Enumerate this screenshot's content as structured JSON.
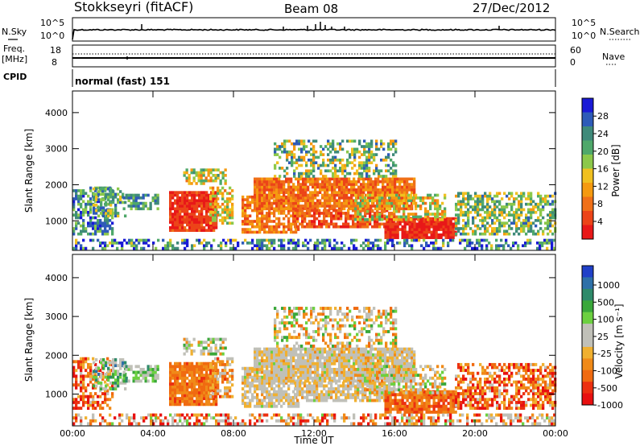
{
  "header": {
    "station": "Stokkseyri (fitACF)",
    "beam": "Beam 08",
    "date": "27/Dec/2012"
  },
  "nsky_panel": {
    "left_label": "N.Sky",
    "right_label": "N.Search",
    "ticks_left": [
      "10^5",
      "10^0"
    ],
    "ticks_right": [
      "10^5",
      "10^0"
    ]
  },
  "freq_panel": {
    "left_label_1": "Freq.",
    "left_label_2": "[MHz]",
    "right_label": "Nave",
    "ticks_left": [
      "18",
      "8"
    ],
    "ticks_right": [
      "60",
      "0"
    ]
  },
  "cpid_panel": {
    "label": "CPID",
    "value": "normal (fast) 151"
  },
  "chart_data": [
    {
      "type": "heatmap",
      "name": "power",
      "ylabel": "Slant Range [km]",
      "ylim": [
        180,
        4600
      ],
      "yticks": [
        "1000",
        "2000",
        "3000",
        "4000"
      ],
      "colorbar_label": "Power [dB]",
      "colorbar_ticks": [
        "4",
        "8",
        "12",
        "16",
        "20",
        "24",
        "28"
      ],
      "colorbar_colors": [
        "#1a1ad6",
        "#2e5bb8",
        "#3f8a7a",
        "#4fa86a",
        "#8cc84a",
        "#f0c020",
        "#f59a10",
        "#f07018",
        "#ec4418",
        "#e81818"
      ]
    },
    {
      "type": "heatmap",
      "name": "velocity",
      "ylabel": "Slant Range [km]",
      "ylim": [
        180,
        4600
      ],
      "yticks": [
        "1000",
        "2000",
        "3000",
        "4000"
      ],
      "colorbar_label": "Velocity [m s⁻¹]",
      "colorbar_ticks": [
        "1000",
        "500",
        "100",
        "25",
        "-25",
        "-100",
        "-500",
        "-1000"
      ],
      "colorbar_colors": [
        "#2040c8",
        "#2e70a8",
        "#2e8a6a",
        "#3aa83a",
        "#6cd040",
        "#c0c0b8",
        "#c0c0b8",
        "#f0b030",
        "#f08a18",
        "#f06a10",
        "#ec3010",
        "#e81010"
      ]
    }
  ],
  "x_axis": {
    "ticks": [
      "00:00",
      "04:00",
      "08:00",
      "12:00",
      "16:00",
      "20:00",
      "00:00"
    ],
    "label": "Time UT"
  }
}
